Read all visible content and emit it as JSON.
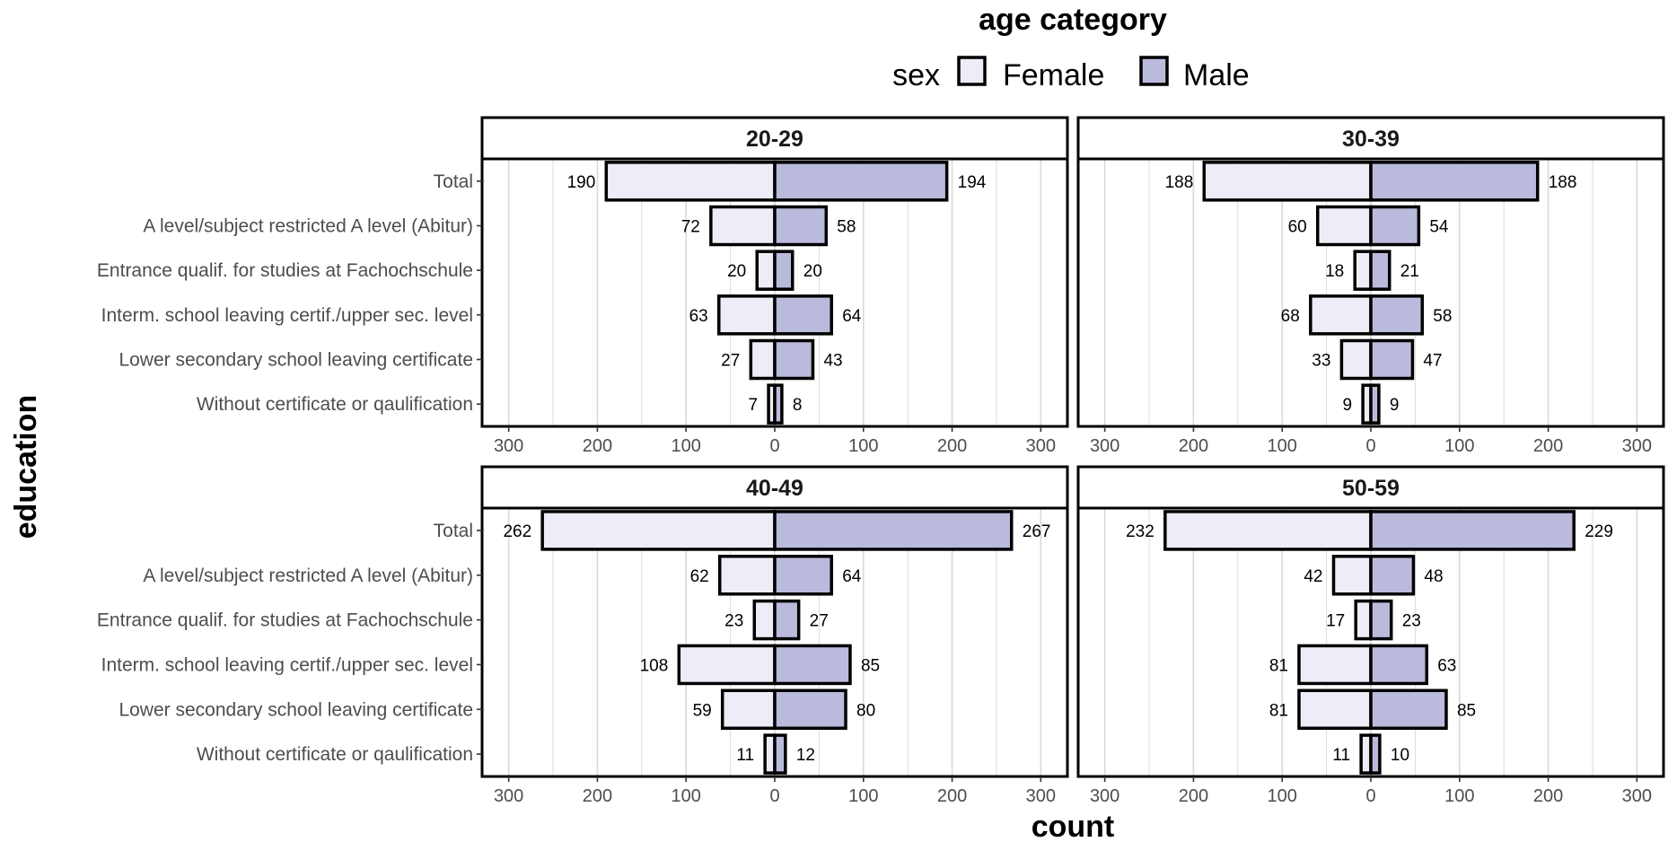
{
  "chart_data": {
    "type": "bar",
    "orientation": "horizontal",
    "layout": "population pyramid, faceted 2x2",
    "legend": {
      "title": "age category",
      "fill_label": "sex",
      "entries": [
        {
          "name": "Female",
          "color": "#eeedf7"
        },
        {
          "name": "Male",
          "color": "#babbdc"
        }
      ],
      "position": "top"
    },
    "xlabel": "count",
    "ylabel": "education",
    "xlim": [
      -330,
      330
    ],
    "xticks": [
      -300,
      -200,
      -100,
      0,
      100,
      200,
      300
    ],
    "xtick_labels": [
      "300",
      "200",
      "100",
      "0",
      "100",
      "200",
      "300"
    ],
    "categories": [
      "Total",
      "A level/subject restricted A level (Abitur)",
      "Entrance qualif. for studies at Fachochschule",
      "Interm. school leaving certif./upper sec. level",
      "Lower secondary school leaving certificate",
      "Without certificate or qaulification"
    ],
    "grid": "vertical major and minor lines",
    "panels": [
      {
        "name": "20-29",
        "series": [
          {
            "name": "Female",
            "values": [
              190,
              72,
              20,
              63,
              27,
              7
            ]
          },
          {
            "name": "Male",
            "values": [
              194,
              58,
              20,
              64,
              43,
              8
            ]
          }
        ]
      },
      {
        "name": "30-39",
        "series": [
          {
            "name": "Female",
            "values": [
              188,
              60,
              18,
              68,
              33,
              9
            ]
          },
          {
            "name": "Male",
            "values": [
              188,
              54,
              21,
              58,
              47,
              9
            ]
          }
        ]
      },
      {
        "name": "40-49",
        "series": [
          {
            "name": "Female",
            "values": [
              262,
              62,
              23,
              108,
              59,
              11
            ]
          },
          {
            "name": "Male",
            "values": [
              267,
              64,
              27,
              85,
              80,
              12
            ]
          }
        ]
      },
      {
        "name": "50-59",
        "series": [
          {
            "name": "Female",
            "values": [
              232,
              42,
              17,
              81,
              81,
              11
            ]
          },
          {
            "name": "Male",
            "values": [
              229,
              48,
              23,
              63,
              85,
              10
            ]
          }
        ]
      }
    ]
  },
  "colors": {
    "female": "#eeedf7",
    "male": "#babbdc",
    "outline": "#000000",
    "grid": "#d9d9d9"
  }
}
